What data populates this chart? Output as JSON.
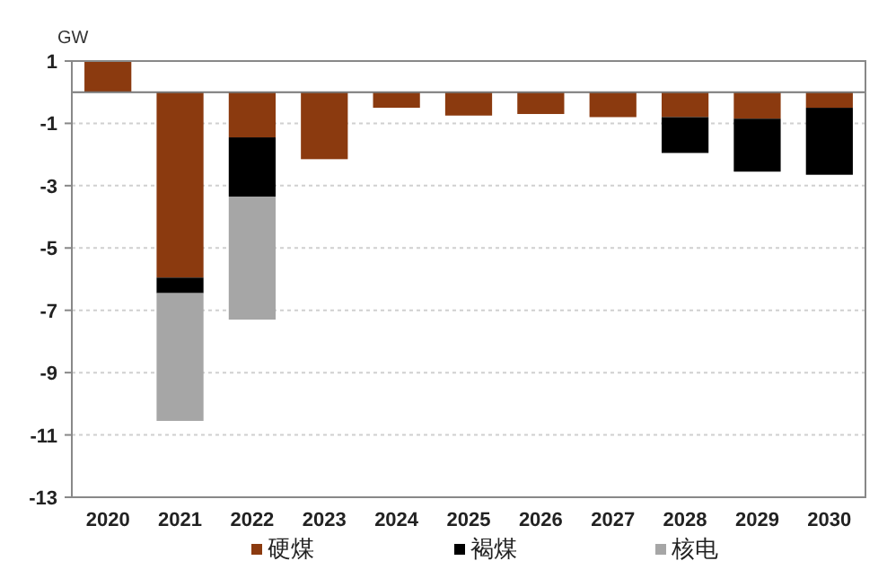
{
  "chart_data": {
    "type": "bar",
    "ylabel": "GW",
    "stacked": true,
    "grid": "y",
    "legend": "bottom",
    "categories": [
      "2020",
      "2021",
      "2022",
      "2023",
      "2024",
      "2025",
      "2026",
      "2027",
      "2028",
      "2029",
      "2030"
    ],
    "ylim": [
      -13,
      1
    ],
    "yticks": [
      1,
      -1,
      -3,
      -5,
      -7,
      -9,
      -11,
      -13
    ],
    "series": [
      {
        "name": "硬煤",
        "color": "#8b3a0f",
        "values": [
          1.0,
          -5.95,
          -1.45,
          -2.15,
          -0.5,
          -0.75,
          -0.7,
          -0.8,
          -0.8,
          -0.85,
          -0.5
        ]
      },
      {
        "name": "褐煤",
        "color": "#000000",
        "values": [
          null,
          -0.5,
          -1.9,
          null,
          null,
          null,
          null,
          null,
          -1.15,
          -1.7,
          -2.15
        ]
      },
      {
        "name": "核电",
        "color": "#a6a6a6",
        "values": [
          null,
          -4.1,
          -3.95,
          null,
          null,
          null,
          null,
          null,
          null,
          null,
          null
        ]
      }
    ]
  }
}
